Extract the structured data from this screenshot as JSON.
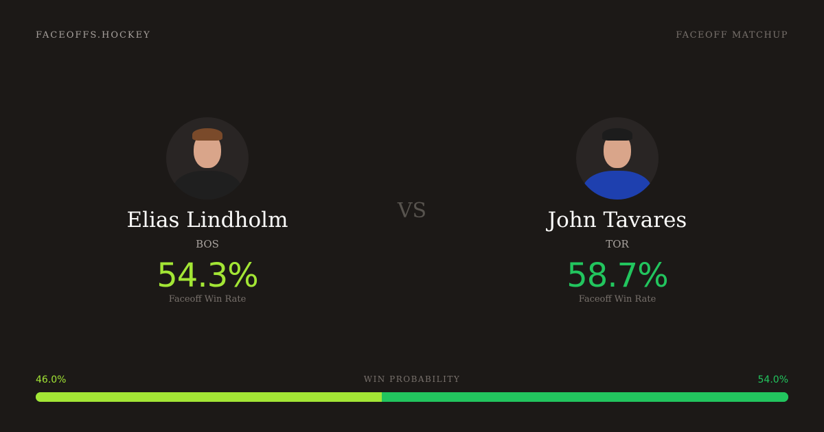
{
  "header": {
    "brand": "FACEOFFS.HOCKEY",
    "page_type": "FACEOFF MATCHUP"
  },
  "vs_label": "VS",
  "players": [
    {
      "name": "Elias Lindholm",
      "team": "BOS",
      "win_rate": "54.3%",
      "win_rate_label": "Faceoff Win Rate",
      "color": "#a3e635",
      "jersey_color": "#1f1f1f",
      "hair_color": "#7a4a2a"
    },
    {
      "name": "John Tavares",
      "team": "TOR",
      "win_rate": "58.7%",
      "win_rate_label": "Faceoff Win Rate",
      "color": "#22c55e",
      "jersey_color": "#1e40af",
      "hair_color": "#1c1c1c"
    }
  ],
  "win_probability": {
    "label": "WIN PROBABILITY",
    "left": "46.0%",
    "right": "54.0%",
    "left_value": 46.0,
    "right_value": 54.0,
    "left_color": "#a3e635",
    "right_color": "#22c55e"
  }
}
